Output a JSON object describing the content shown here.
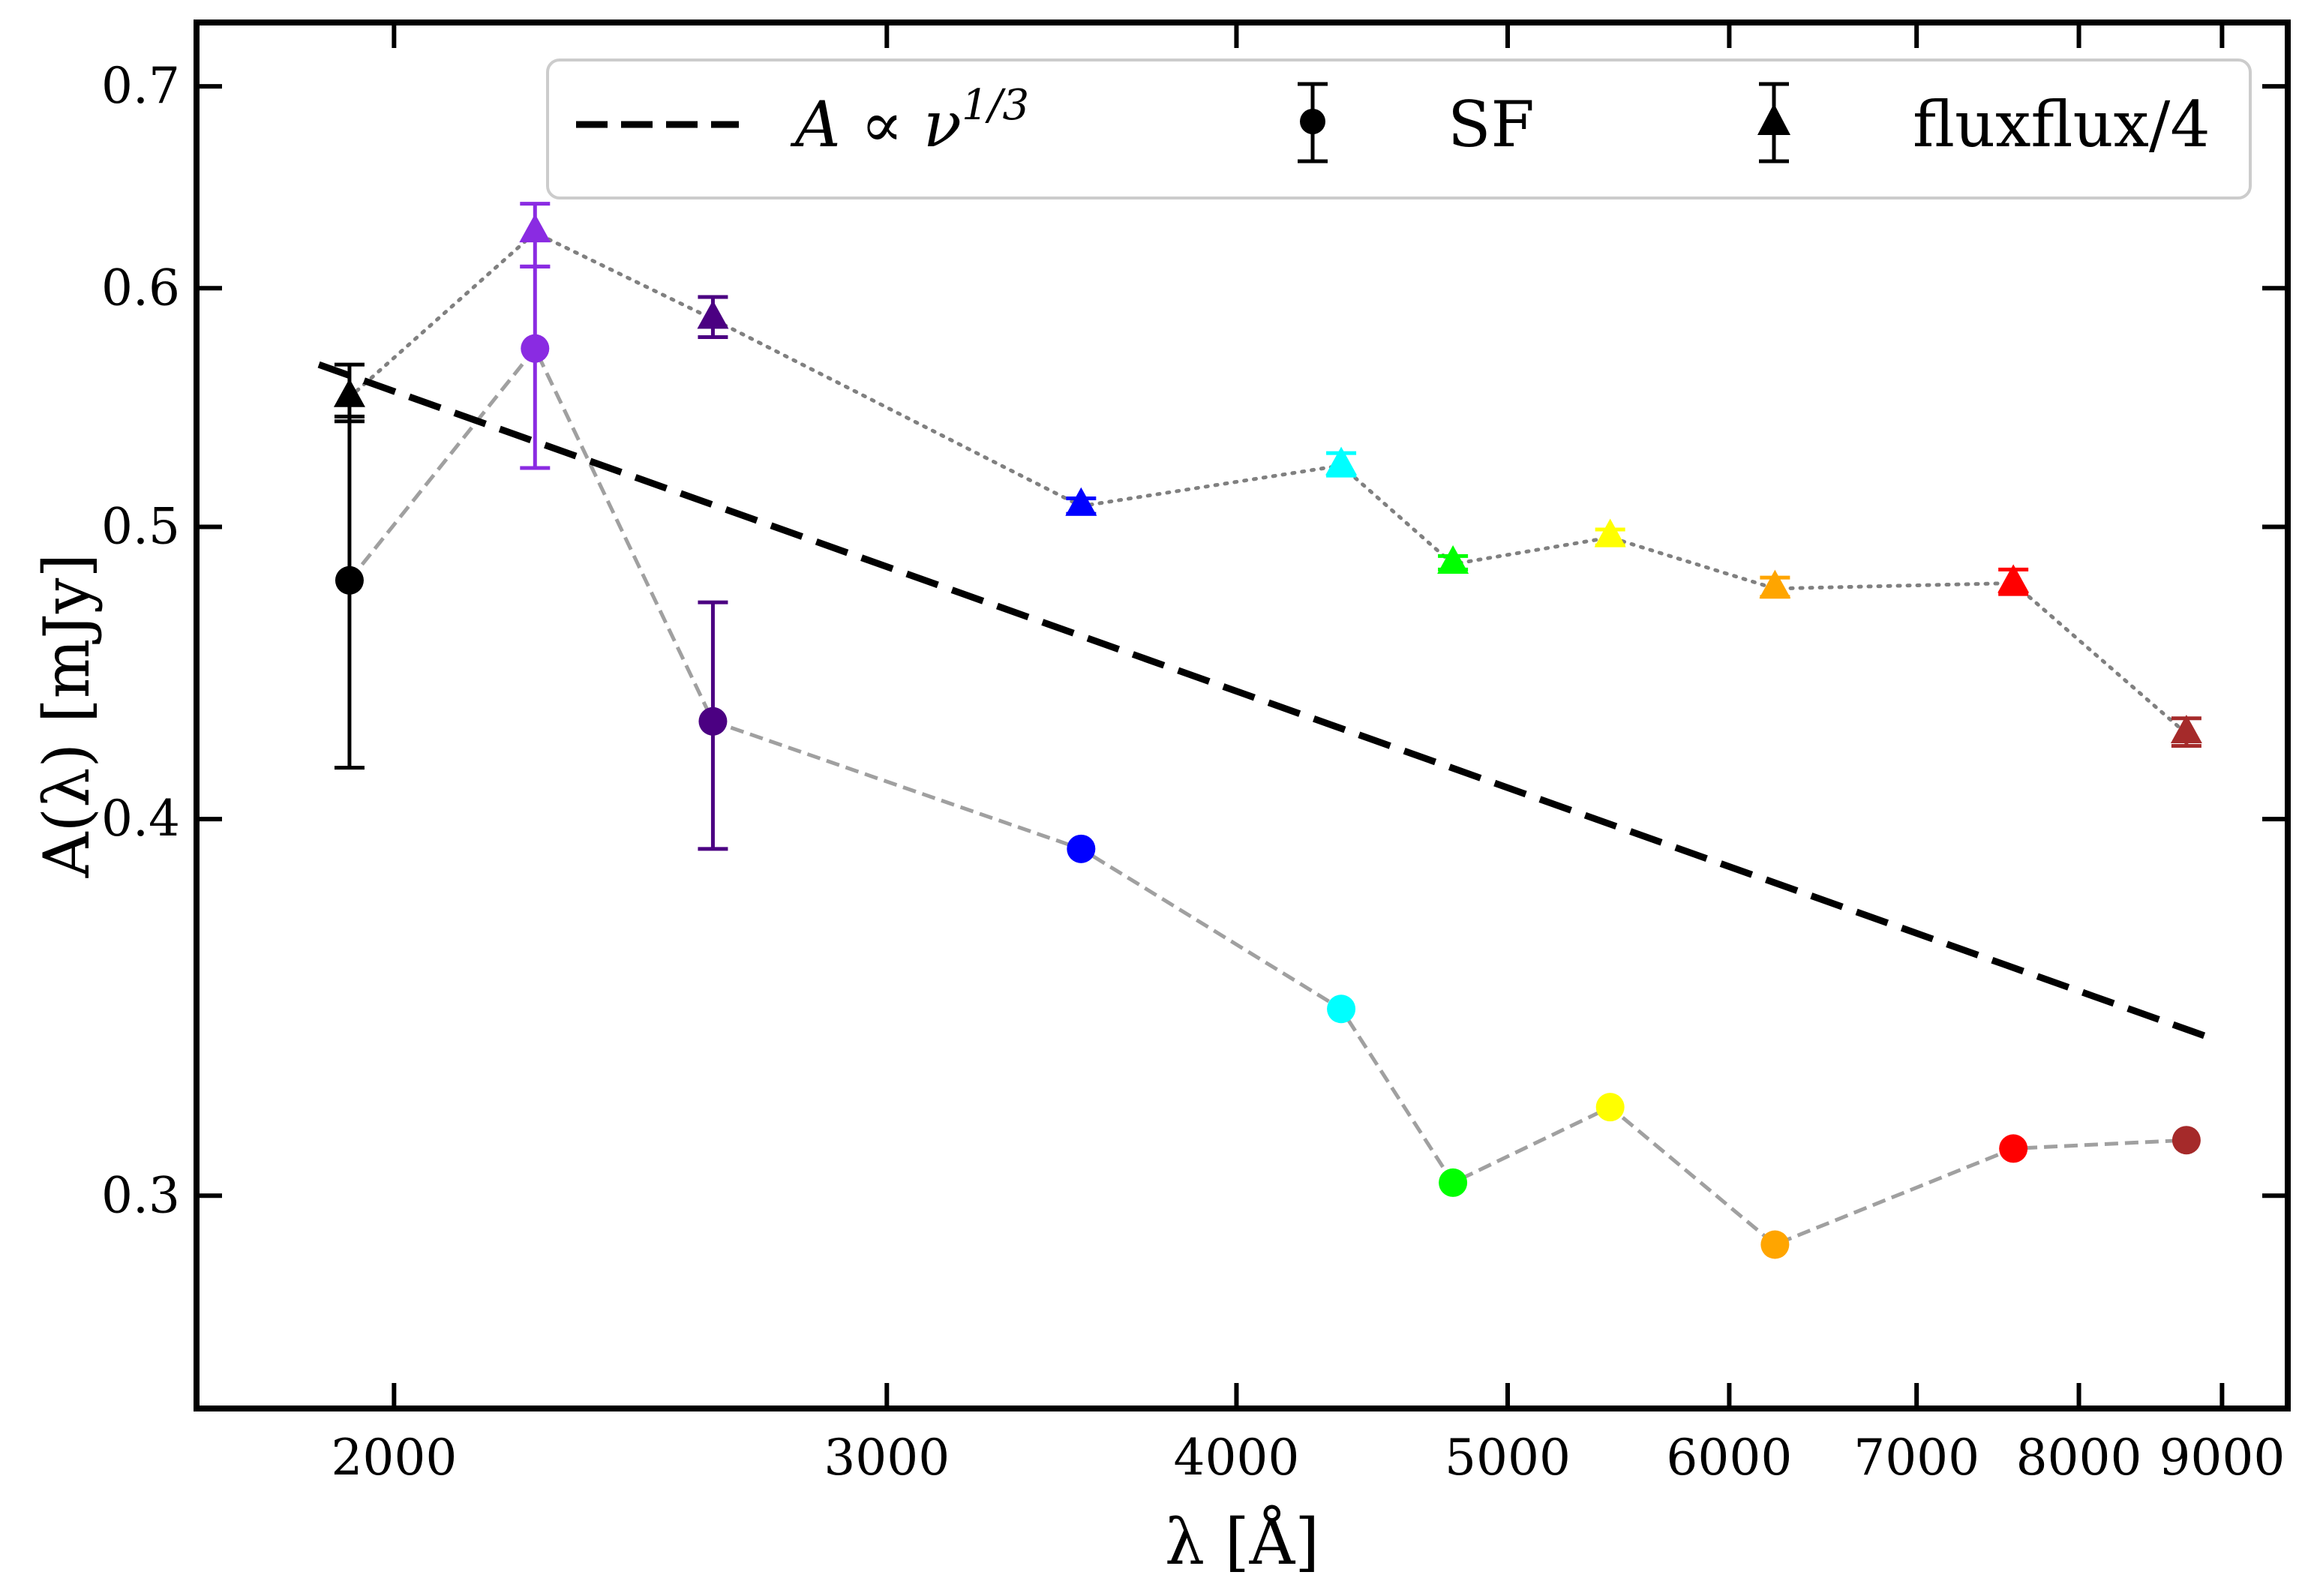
{
  "chart_data": {
    "type": "scatter",
    "title": "",
    "xlabel": "λ [Å]",
    "ylabel": "A(λ) [mJy]",
    "xscale": "log",
    "yscale": "log",
    "xlim": [
      1700,
      9500
    ],
    "ylim": [
      0.255,
      0.735
    ],
    "xticks": [
      {
        "value": 2000,
        "label": "2000"
      },
      {
        "value": 3000,
        "label": "3000"
      },
      {
        "value": 4000,
        "label": "4000"
      },
      {
        "value": 5000,
        "label": "5000"
      },
      {
        "value": 6000,
        "label": "6000"
      },
      {
        "value": 7000,
        "label": "7000"
      },
      {
        "value": 8000,
        "label": "8000"
      },
      {
        "value": 9000,
        "label": "9000"
      }
    ],
    "yticks": [
      {
        "value": 0.3,
        "label": "0.3"
      },
      {
        "value": 0.4,
        "label": "0.4"
      },
      {
        "value": 0.5,
        "label": "0.5"
      },
      {
        "value": 0.6,
        "label": "0.6"
      },
      {
        "value": 0.7,
        "label": "0.7"
      }
    ],
    "legend": {
      "placement": "top-right",
      "entries": [
        {
          "label": "A ∝ ν",
          "superscript": "1/3",
          "style": "dashed-line"
        },
        {
          "label": "SF",
          "style": "circle-errorbar"
        },
        {
          "label": "fluxflux/4",
          "style": "triangle-errorbar"
        }
      ]
    },
    "model_line": {
      "name": "A ∝ ν^1/3",
      "x": [
        1880,
        8950
      ],
      "y": [
        0.566,
        0.338
      ],
      "color": "#000000"
    },
    "series": [
      {
        "name": "SF",
        "marker": "circle",
        "connector": "dashed",
        "connector_color": "#a0a0a0",
        "points": [
          {
            "x": 1928,
            "y": 0.48,
            "err": [
              0.064,
              0.064
            ],
            "color": "#000000"
          },
          {
            "x": 2246,
            "y": 0.573,
            "err": [
              0.05,
              0.037
            ],
            "color": "#8a2be2"
          },
          {
            "x": 2600,
            "y": 0.431,
            "err": [
              0.04,
              0.041
            ],
            "color": "#4b0082"
          },
          {
            "x": 3520,
            "y": 0.391,
            "err": [
              0,
              0
            ],
            "color": "#0000ff"
          },
          {
            "x": 4360,
            "y": 0.346,
            "err": [
              0,
              0
            ],
            "color": "#00ffff"
          },
          {
            "x": 4780,
            "y": 0.303,
            "err": [
              0,
              0
            ],
            "color": "#00ff00"
          },
          {
            "x": 5440,
            "y": 0.321,
            "err": [
              0,
              0
            ],
            "color": "#ffff00"
          },
          {
            "x": 6230,
            "y": 0.289,
            "err": [
              0,
              0
            ],
            "color": "#ffa500"
          },
          {
            "x": 7580,
            "y": 0.311,
            "err": [
              0,
              0
            ],
            "color": "#ff0000"
          },
          {
            "x": 8740,
            "y": 0.313,
            "err": [
              0,
              0
            ],
            "color": "#a52a2a"
          }
        ]
      },
      {
        "name": "fluxflux/4",
        "marker": "triangle",
        "connector": "dotted",
        "connector_color": "#808080",
        "points": [
          {
            "x": 1928,
            "y": 0.552,
            "err": [
              0.01,
              0.014
            ],
            "color": "#000000"
          },
          {
            "x": 2246,
            "y": 0.626,
            "err": [
              0.016,
              0.014
            ],
            "color": "#8a2be2"
          },
          {
            "x": 2600,
            "y": 0.586,
            "err": [
              0.008,
              0.01
            ],
            "color": "#4b0082"
          },
          {
            "x": 3520,
            "y": 0.508,
            "err": [
              0.003,
              0.003
            ],
            "color": "#0000ff"
          },
          {
            "x": 4360,
            "y": 0.524,
            "err": [
              0.004,
              0.005
            ],
            "color": "#00ffff"
          },
          {
            "x": 4780,
            "y": 0.486,
            "err": [
              0.002,
              0.003
            ],
            "color": "#00ff00"
          },
          {
            "x": 5440,
            "y": 0.496,
            "err": [
              0.003,
              0.003
            ],
            "color": "#ffff00"
          },
          {
            "x": 6230,
            "y": 0.477,
            "err": [
              0.003,
              0.004
            ],
            "color": "#ffa500"
          },
          {
            "x": 7580,
            "y": 0.479,
            "err": [
              0.004,
              0.005
            ],
            "color": "#ff0000"
          },
          {
            "x": 8740,
            "y": 0.427,
            "err": [
              0.004,
              0.005
            ],
            "color": "#a52a2a"
          }
        ]
      }
    ]
  }
}
